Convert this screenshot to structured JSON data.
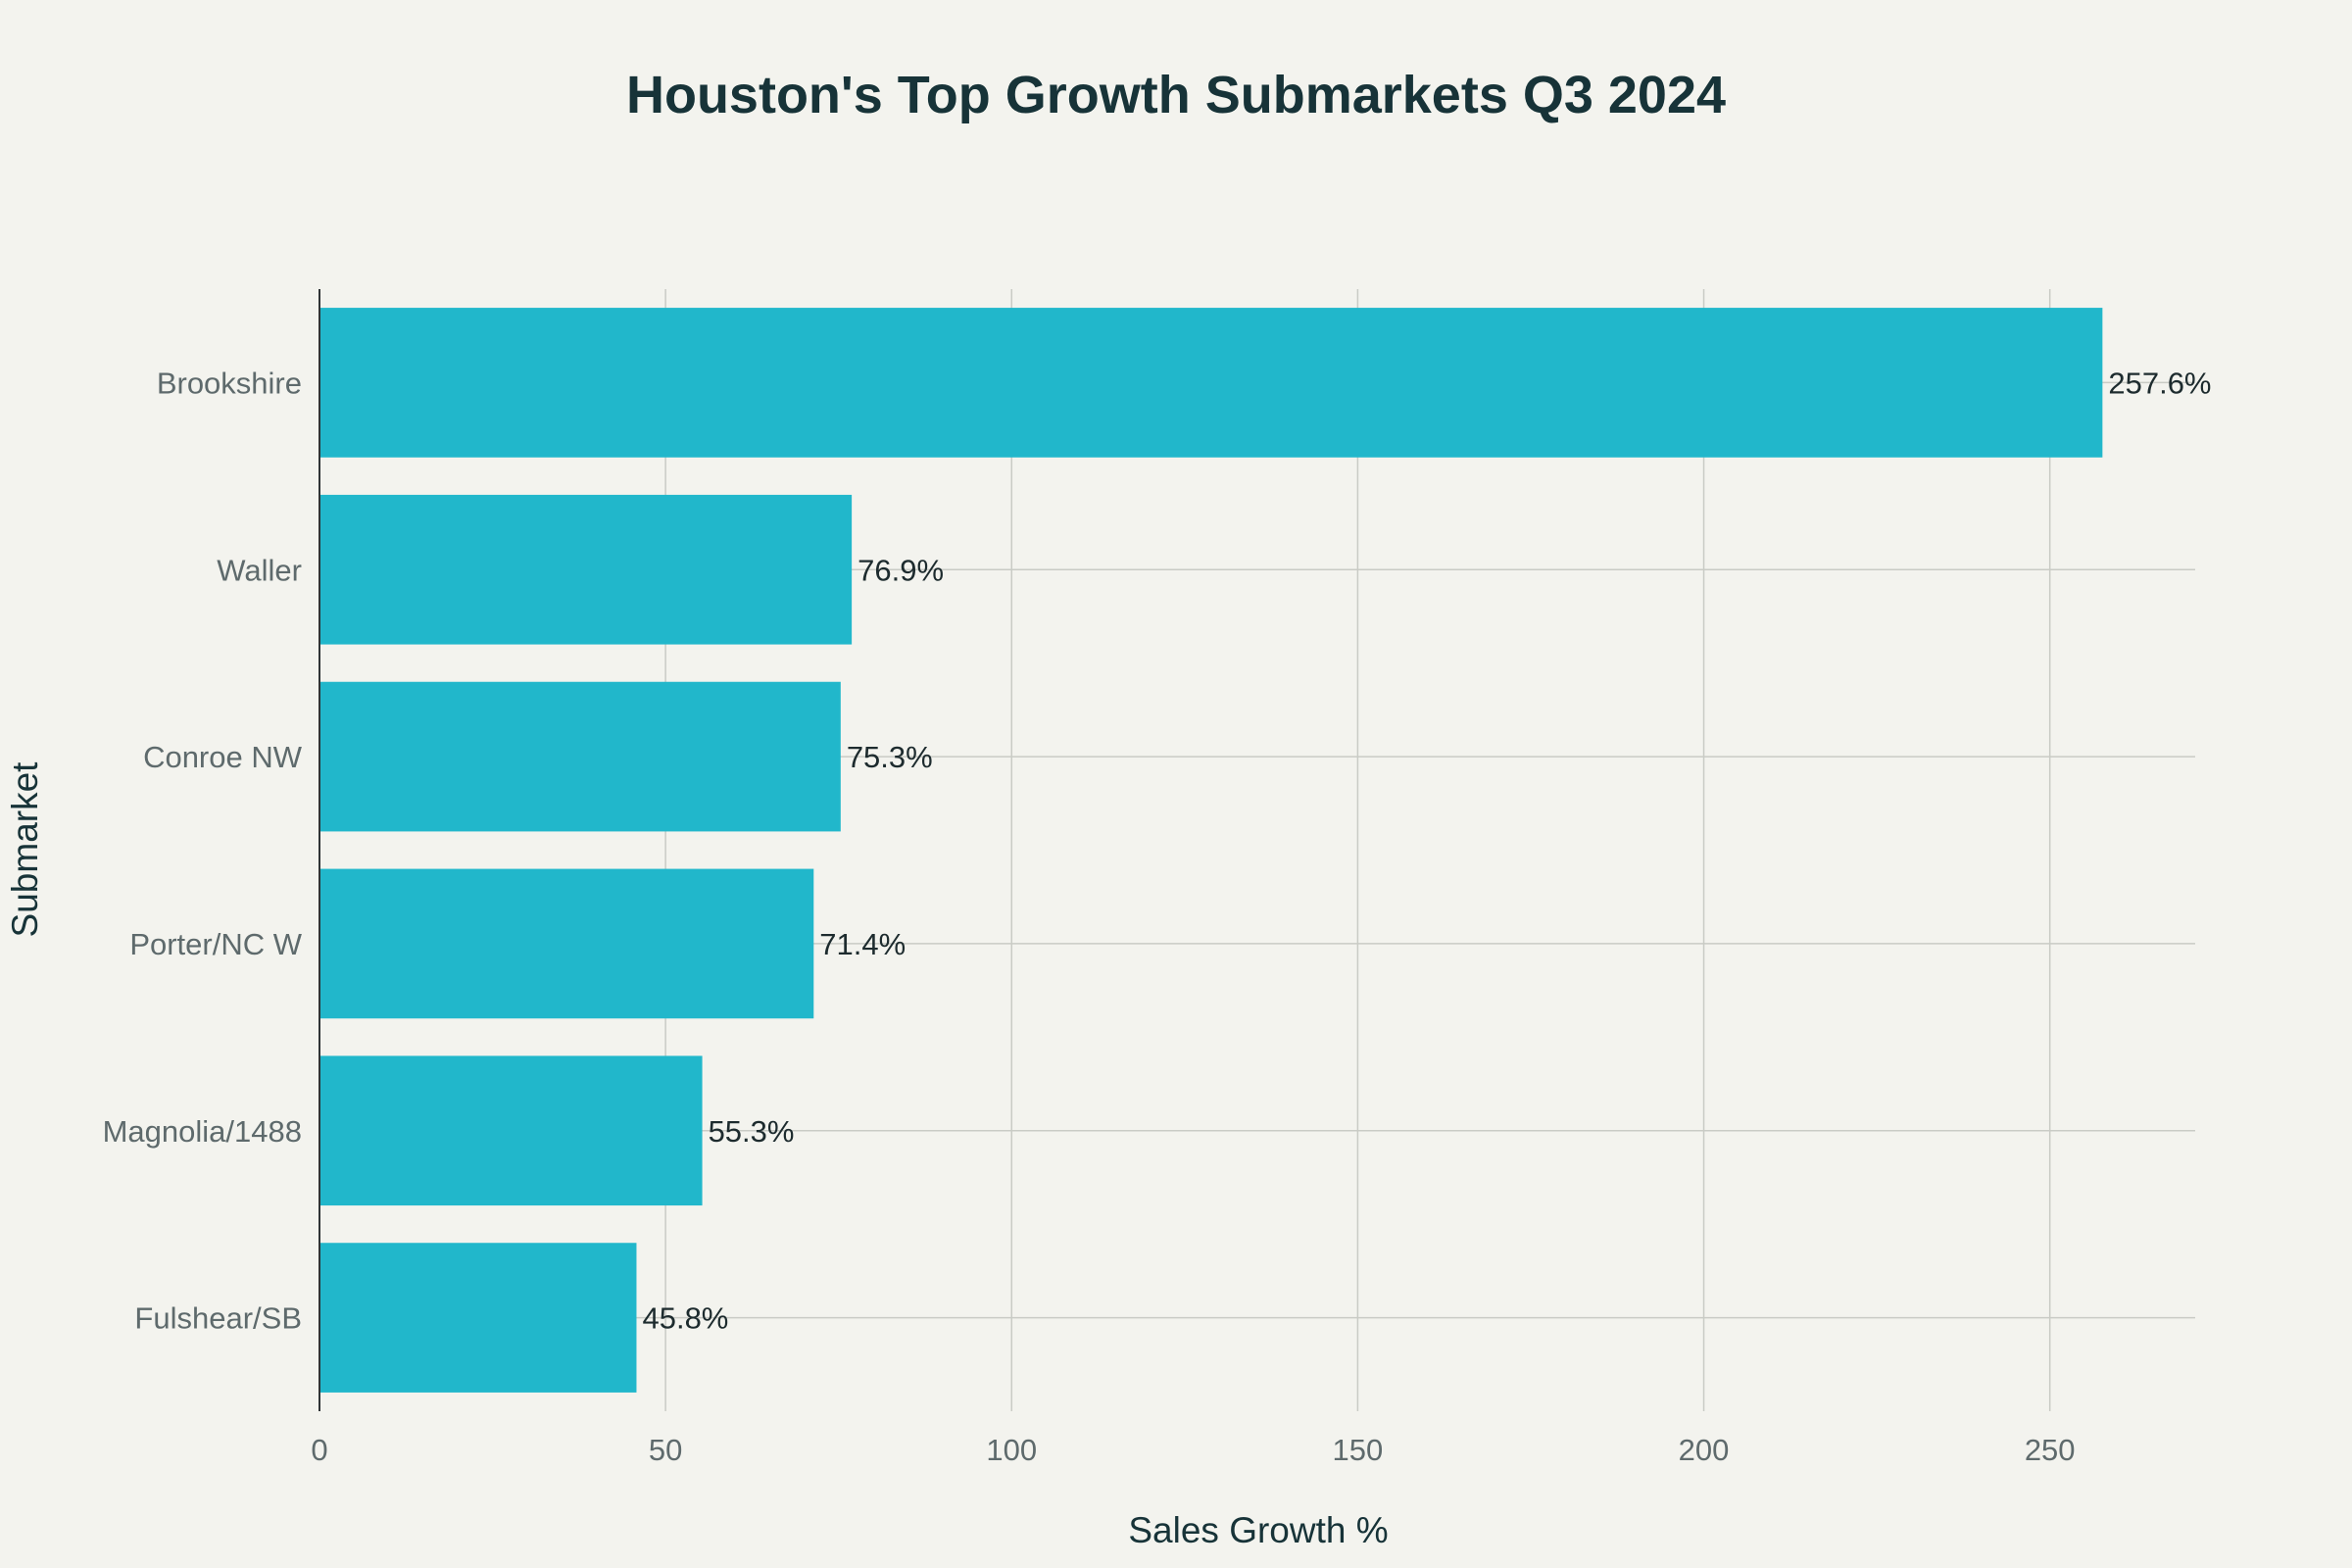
{
  "chart_data": {
    "type": "bar",
    "orientation": "horizontal",
    "title": "Houston's Top Growth Submarkets Q3 2024",
    "xlabel": "Sales Growth %",
    "ylabel": "Submarket",
    "categories": [
      "Brookshire",
      "Waller",
      "Conroe NW",
      "Porter/NC W",
      "Magnolia/1488",
      "Fulshear/SB"
    ],
    "values": [
      257.6,
      76.9,
      75.3,
      71.4,
      55.3,
      45.8
    ],
    "data_labels": [
      "257.6%",
      "76.9%",
      "75.3%",
      "71.4%",
      "55.3%",
      "45.8%"
    ],
    "x_ticks": [
      "0",
      "50",
      "100",
      "150",
      "200",
      "250"
    ],
    "x_tick_values": [
      0,
      50,
      100,
      150,
      200,
      250
    ],
    "xlim": [
      0,
      271
    ],
    "grid": true,
    "legend": "none",
    "colors": {
      "bar": "#21b7cb",
      "background": "#f3f3ee",
      "title": "#173338",
      "tick_label": "#5e6a6c"
    }
  }
}
